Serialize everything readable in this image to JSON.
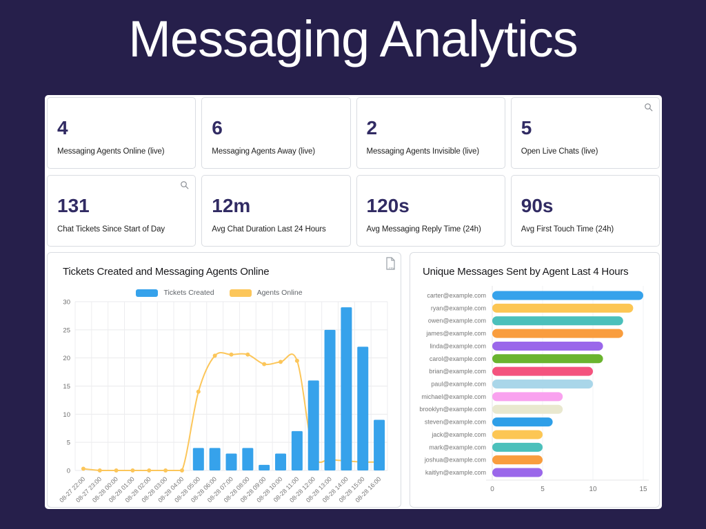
{
  "page": {
    "title": "Messaging Analytics"
  },
  "colors": {
    "background": "#261f4b",
    "panel": "#ffffff",
    "card_border": "#d9dce1",
    "kpi_number": "#312b63",
    "bar_blue": "#36a2eb",
    "line_yellow": "#fcc65a",
    "icon_gray": "#8d9096"
  },
  "kpi_cards": [
    {
      "value": "4",
      "label": "Messaging Agents Online (live)",
      "search_icon": false
    },
    {
      "value": "6",
      "label": "Messaging Agents Away (live)",
      "search_icon": false
    },
    {
      "value": "2",
      "label": "Messaging Agents Invisible (live)",
      "search_icon": false
    },
    {
      "value": "5",
      "label": "Open Live Chats (live)",
      "search_icon": true
    },
    {
      "value": "131",
      "label": "Chat Tickets Since Start of Day",
      "search_icon": true
    },
    {
      "value": "12m",
      "label": "Avg Chat Duration Last 24 Hours",
      "search_icon": false
    },
    {
      "value": "120s",
      "label": "Avg Messaging Reply Time (24h)",
      "search_icon": false
    },
    {
      "value": "90s",
      "label": "Avg First Touch Time (24h)",
      "search_icon": false
    }
  ],
  "chart_data": [
    {
      "type": "bar",
      "subtype": "combo-bar-line",
      "title": "Tickets Created and Messaging Agents Online",
      "categories": [
        "08-27 22:00",
        "08-27 23:00",
        "08-28 00:00",
        "08-28 01:00",
        "08-28 02:00",
        "08-28 03:00",
        "08-28 04:00",
        "08-28 05:00",
        "08-28 06:00",
        "08-28 07:00",
        "08-28 08:00",
        "08-28 09:00",
        "08-28 10:00",
        "08-28 11:00",
        "08-28 12:00",
        "08-28 13:00",
        "08-28 14:00",
        "08-28 15:00",
        "08-28 16:00"
      ],
      "series": [
        {
          "name": "Tickets Created",
          "type": "bar",
          "color": "#36a2eb",
          "values": [
            0,
            0,
            0,
            0,
            0,
            0,
            0,
            4,
            4,
            3,
            4,
            1,
            3,
            7,
            16,
            25,
            29,
            22,
            9
          ]
        },
        {
          "name": "Agents Online",
          "type": "line",
          "color": "#fcc65a",
          "values": [
            0.3,
            0,
            0,
            0,
            0,
            0,
            0,
            14,
            20.4,
            20.6,
            20.6,
            18.9,
            19.3,
            19.5,
            3,
            2,
            1.7,
            1.5,
            1.5
          ]
        }
      ],
      "ylim": [
        0,
        30
      ],
      "yticks": [
        0,
        5,
        10,
        15,
        20,
        25,
        30
      ],
      "grid": true,
      "legend_position": "top",
      "export_label": "csv"
    },
    {
      "type": "bar",
      "orientation": "horizontal",
      "title": "Unique Messages Sent by Agent Last 4 Hours",
      "categories": [
        "carter@example.com",
        "ryan@example.com",
        "owen@example.com",
        "james@example.com",
        "linda@example.com",
        "carol@example.com",
        "brian@example.com",
        "paul@example.com",
        "michael@example.com",
        "brooklyn@example.com",
        "steven@example.com",
        "jack@example.com",
        "mark@example.com",
        "joshua@example.com",
        "kaitlyn@example.com"
      ],
      "values": [
        15,
        14,
        13,
        13,
        11,
        11,
        10,
        10,
        7,
        7,
        6,
        5,
        5,
        5,
        5
      ],
      "colors": [
        "#36a2eb",
        "#fcc654",
        "#4bc0bb",
        "#f99d3e",
        "#9a67ea",
        "#6ab42f",
        "#f4537e",
        "#a9d6e9",
        "#f9a2ef",
        "#e9e8cf",
        "#2f9fe8",
        "#fcc654",
        "#4bc0bb",
        "#f99d3e",
        "#9a67ea"
      ],
      "xlim": [
        0,
        15
      ],
      "xticks": [
        0,
        5,
        10,
        15
      ],
      "grid": false
    }
  ]
}
